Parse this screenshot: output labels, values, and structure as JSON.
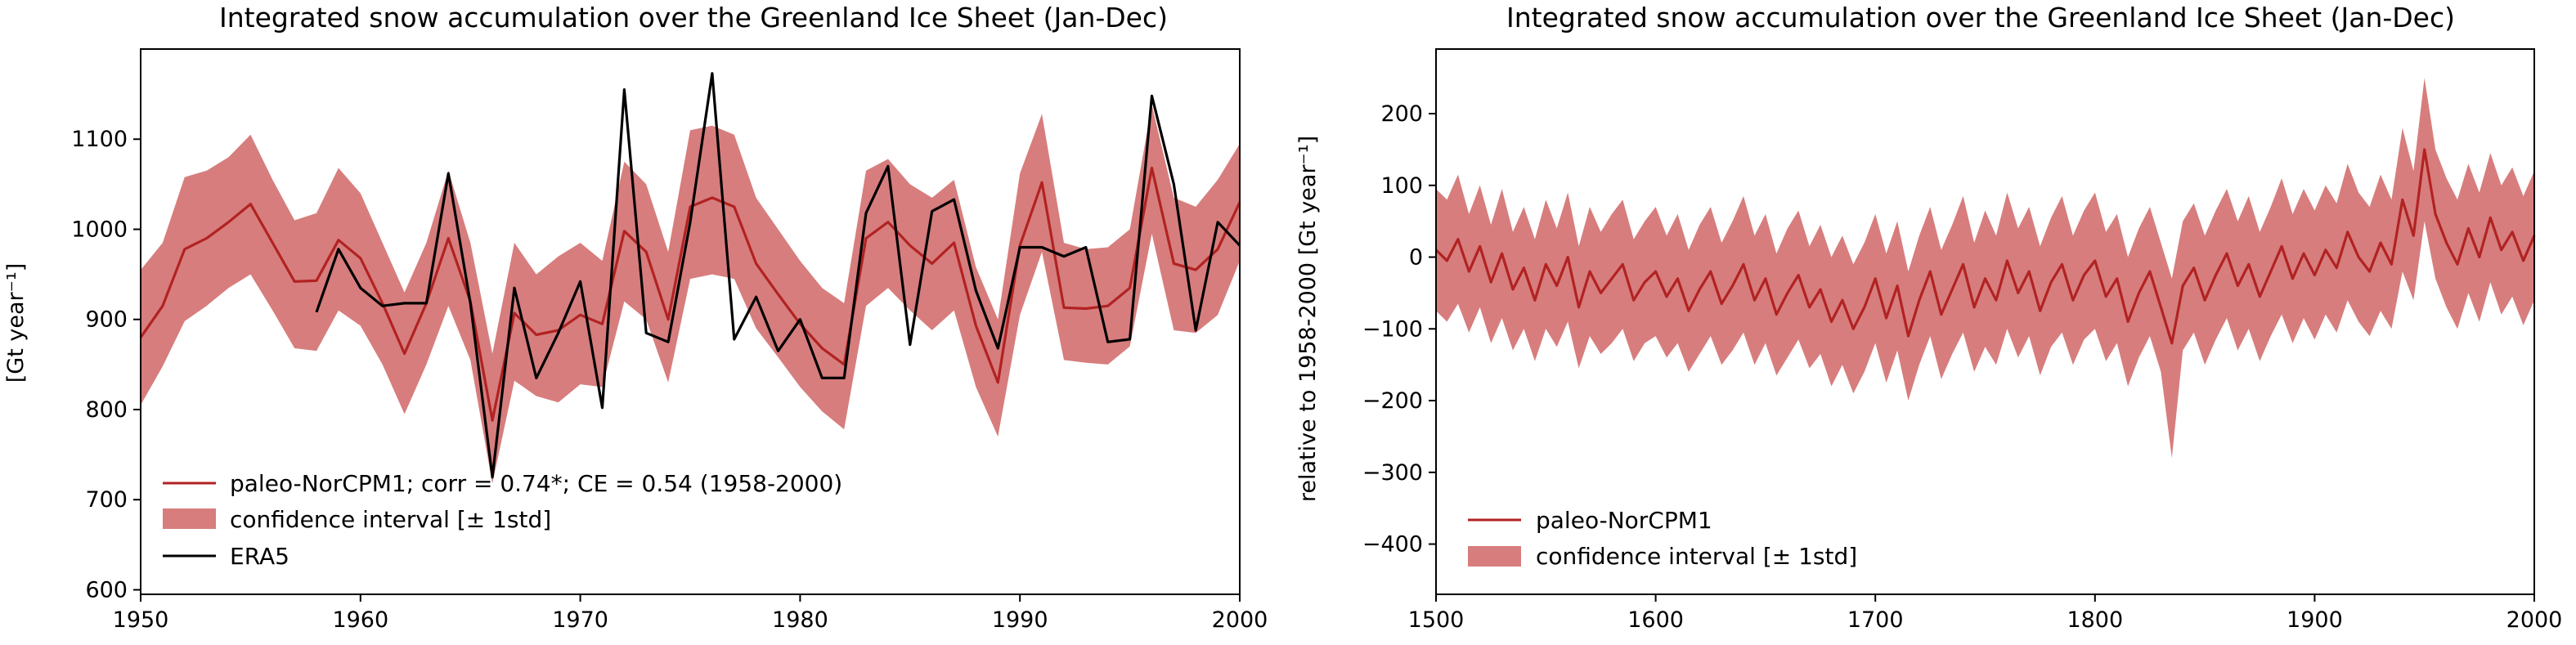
{
  "figure": {
    "colors": {
      "model_line": "#b22222",
      "band_fill": "#cd5c5c",
      "band_opacity": 0.8,
      "obs_line": "#000000"
    },
    "left": {
      "title": "Integrated snow accumulation over the Greenland Ice Sheet (Jan-Dec)",
      "ylabel": "[Gt year⁻¹]",
      "legend": {
        "placement": "lower-left",
        "model_label": "paleo-NorCPM1; corr = 0.74*; CE = 0.54 (1958-2000)",
        "band_label": "confidence interval [± 1std]",
        "obs_label": "ERA5"
      }
    },
    "right": {
      "title": "Integrated snow accumulation over the Greenland Ice Sheet (Jan-Dec)",
      "ylabel": "relative to 1958-2000 [Gt year⁻¹]",
      "legend": {
        "placement": "lower-left",
        "model_label": "paleo-NorCPM1",
        "band_label": "confidence interval [± 1std]"
      }
    }
  },
  "chart_data": [
    {
      "type": "line",
      "title": "Integrated snow accumulation over the Greenland Ice Sheet (Jan-Dec)",
      "xlabel": "",
      "ylabel": "[Gt year⁻¹]",
      "xlim": [
        1950,
        2000
      ],
      "ylim": [
        595,
        1200
      ],
      "xticks": [
        1950,
        1960,
        1970,
        1980,
        1990,
        2000
      ],
      "yticks": [
        600,
        700,
        800,
        900,
        1000,
        1100
      ],
      "grid": false,
      "series": [
        {
          "name": "paleo-NorCPM1; corr = 0.74*; CE = 0.54 (1958-2000)",
          "x": [
            1950,
            1951,
            1952,
            1953,
            1954,
            1955,
            1956,
            1957,
            1958,
            1959,
            1960,
            1961,
            1962,
            1963,
            1964,
            1965,
            1966,
            1967,
            1968,
            1969,
            1970,
            1971,
            1972,
            1973,
            1974,
            1975,
            1976,
            1977,
            1978,
            1979,
            1980,
            1981,
            1982,
            1983,
            1984,
            1985,
            1986,
            1987,
            1988,
            1989,
            1990,
            1991,
            1992,
            1993,
            1994,
            1995,
            1996,
            1997,
            1998,
            1999,
            2000
          ],
          "y": [
            880,
            915,
            978,
            990,
            1008,
            1028,
            985,
            942,
            943,
            988,
            968,
            918,
            862,
            918,
            990,
            920,
            788,
            907,
            883,
            888,
            905,
            895,
            998,
            975,
            900,
            1025,
            1035,
            1025,
            962,
            928,
            895,
            868,
            850,
            990,
            1008,
            982,
            962,
            985,
            893,
            830,
            982,
            1052,
            913,
            912,
            915,
            935,
            1068,
            962,
            955,
            978,
            1030
          ]
        },
        {
          "name": "confidence interval [± 1std]",
          "x": [
            1950,
            1951,
            1952,
            1953,
            1954,
            1955,
            1956,
            1957,
            1958,
            1959,
            1960,
            1961,
            1962,
            1963,
            1964,
            1965,
            1966,
            1967,
            1968,
            1969,
            1970,
            1971,
            1972,
            1973,
            1974,
            1975,
            1976,
            1977,
            1978,
            1979,
            1980,
            1981,
            1982,
            1983,
            1984,
            1985,
            1986,
            1987,
            1988,
            1989,
            1990,
            1991,
            1992,
            1993,
            1994,
            1995,
            1996,
            1997,
            1998,
            1999,
            2000
          ],
          "upper": [
            955,
            985,
            1058,
            1065,
            1080,
            1105,
            1055,
            1010,
            1018,
            1068,
            1040,
            985,
            930,
            985,
            1065,
            985,
            862,
            985,
            950,
            970,
            985,
            965,
            1075,
            1050,
            975,
            1110,
            1115,
            1105,
            1035,
            1000,
            965,
            935,
            918,
            1065,
            1078,
            1050,
            1035,
            1055,
            958,
            900,
            1062,
            1128,
            985,
            978,
            980,
            1000,
            1138,
            1035,
            1025,
            1055,
            1095
          ],
          "lower": [
            805,
            848,
            898,
            915,
            935,
            950,
            910,
            868,
            865,
            910,
            893,
            850,
            795,
            850,
            915,
            855,
            718,
            832,
            815,
            808,
            828,
            825,
            920,
            900,
            830,
            945,
            950,
            945,
            890,
            858,
            825,
            798,
            778,
            915,
            935,
            910,
            888,
            910,
            825,
            770,
            905,
            975,
            855,
            852,
            850,
            870,
            995,
            888,
            885,
            905,
            965
          ]
        },
        {
          "name": "ERA5",
          "x": [
            1958,
            1959,
            1960,
            1961,
            1962,
            1963,
            1964,
            1965,
            1966,
            1967,
            1968,
            1969,
            1970,
            1971,
            1972,
            1973,
            1974,
            1975,
            1976,
            1977,
            1978,
            1979,
            1980,
            1981,
            1982,
            1983,
            1984,
            1985,
            1986,
            1987,
            1988,
            1989,
            1990,
            1991,
            1992,
            1993,
            1994,
            1995,
            1996,
            1997,
            1998,
            1999,
            2000
          ],
          "y": [
            908,
            978,
            935,
            915,
            918,
            918,
            1062,
            918,
            725,
            935,
            835,
            885,
            942,
            802,
            1155,
            885,
            875,
            1008,
            1173,
            878,
            925,
            865,
            900,
            835,
            835,
            1018,
            1070,
            872,
            1020,
            1033,
            932,
            868,
            980,
            980,
            970,
            980,
            875,
            878,
            1148,
            1050,
            888,
            1008,
            982
          ]
        }
      ]
    },
    {
      "type": "line",
      "title": "Integrated snow accumulation over the Greenland Ice Sheet (Jan-Dec)",
      "xlabel": "",
      "ylabel": "relative to 1958-2000 [Gt year⁻¹]",
      "xlim": [
        1500,
        2000
      ],
      "ylim": [
        -470,
        290
      ],
      "xticks": [
        1500,
        1600,
        1700,
        1800,
        1900,
        2000
      ],
      "yticks": [
        -400,
        -300,
        -200,
        -100,
        0,
        100,
        200
      ],
      "grid": false,
      "series": [
        {
          "name": "paleo-NorCPM1",
          "x": [
            1500,
            1505,
            1510,
            1515,
            1520,
            1525,
            1530,
            1535,
            1540,
            1545,
            1550,
            1555,
            1560,
            1565,
            1570,
            1575,
            1580,
            1585,
            1590,
            1595,
            1600,
            1605,
            1610,
            1615,
            1620,
            1625,
            1630,
            1635,
            1640,
            1645,
            1650,
            1655,
            1660,
            1665,
            1670,
            1675,
            1680,
            1685,
            1690,
            1695,
            1700,
            1705,
            1710,
            1715,
            1720,
            1725,
            1730,
            1735,
            1740,
            1745,
            1750,
            1755,
            1760,
            1765,
            1770,
            1775,
            1780,
            1785,
            1790,
            1795,
            1800,
            1805,
            1810,
            1815,
            1820,
            1825,
            1830,
            1835,
            1840,
            1845,
            1850,
            1855,
            1860,
            1865,
            1870,
            1875,
            1880,
            1885,
            1890,
            1895,
            1900,
            1905,
            1910,
            1915,
            1920,
            1925,
            1930,
            1935,
            1940,
            1945,
            1950,
            1955,
            1960,
            1965,
            1970,
            1975,
            1980,
            1985,
            1990,
            1995,
            2000
          ],
          "y": [
            10,
            -5,
            25,
            -20,
            15,
            -35,
            5,
            -45,
            -15,
            -60,
            -10,
            -40,
            0,
            -70,
            -20,
            -50,
            -30,
            -10,
            -60,
            -35,
            -20,
            -55,
            -30,
            -75,
            -45,
            -20,
            -65,
            -40,
            -10,
            -60,
            -30,
            -80,
            -50,
            -25,
            -70,
            -45,
            -90,
            -60,
            -100,
            -70,
            -30,
            -85,
            -40,
            -110,
            -60,
            -20,
            -80,
            -45,
            -10,
            -70,
            -30,
            -60,
            -5,
            -50,
            -20,
            -75,
            -35,
            -10,
            -60,
            -25,
            -5,
            -55,
            -30,
            -90,
            -50,
            -20,
            -70,
            -120,
            -40,
            -15,
            -60,
            -25,
            5,
            -40,
            -10,
            -55,
            -20,
            15,
            -30,
            5,
            -25,
            10,
            -15,
            35,
            0,
            -20,
            20,
            -10,
            80,
            30,
            150,
            60,
            20,
            -10,
            40,
            0,
            55,
            10,
            35,
            -5,
            30
          ]
        },
        {
          "name": "confidence interval [± 1std]",
          "x": [
            1500,
            1505,
            1510,
            1515,
            1520,
            1525,
            1530,
            1535,
            1540,
            1545,
            1550,
            1555,
            1560,
            1565,
            1570,
            1575,
            1580,
            1585,
            1590,
            1595,
            1600,
            1605,
            1610,
            1615,
            1620,
            1625,
            1630,
            1635,
            1640,
            1645,
            1650,
            1655,
            1660,
            1665,
            1670,
            1675,
            1680,
            1685,
            1690,
            1695,
            1700,
            1705,
            1710,
            1715,
            1720,
            1725,
            1730,
            1735,
            1740,
            1745,
            1750,
            1755,
            1760,
            1765,
            1770,
            1775,
            1780,
            1785,
            1790,
            1795,
            1800,
            1805,
            1810,
            1815,
            1820,
            1825,
            1830,
            1835,
            1840,
            1845,
            1850,
            1855,
            1860,
            1865,
            1870,
            1875,
            1880,
            1885,
            1890,
            1895,
            1900,
            1905,
            1910,
            1915,
            1920,
            1925,
            1930,
            1935,
            1940,
            1945,
            1950,
            1955,
            1960,
            1965,
            1970,
            1975,
            1980,
            1985,
            1990,
            1995,
            2000
          ],
          "upper": [
            95,
            80,
            115,
            60,
            100,
            45,
            95,
            35,
            70,
            25,
            80,
            40,
            90,
            15,
            70,
            35,
            60,
            80,
            25,
            50,
            70,
            30,
            60,
            10,
            45,
            70,
            20,
            50,
            85,
            30,
            60,
            5,
            40,
            65,
            15,
            45,
            0,
            30,
            -10,
            20,
            60,
            5,
            50,
            -20,
            30,
            70,
            10,
            45,
            85,
            20,
            65,
            30,
            90,
            40,
            70,
            15,
            55,
            85,
            30,
            65,
            90,
            35,
            60,
            0,
            40,
            70,
            20,
            -30,
            50,
            75,
            30,
            65,
            95,
            50,
            85,
            35,
            70,
            110,
            60,
            95,
            65,
            100,
            75,
            130,
            90,
            70,
            115,
            80,
            180,
            120,
            250,
            150,
            110,
            80,
            130,
            90,
            145,
            100,
            125,
            85,
            120
          ],
          "lower": [
            -75,
            -90,
            -65,
            -105,
            -70,
            -120,
            -85,
            -130,
            -100,
            -145,
            -100,
            -125,
            -90,
            -155,
            -110,
            -135,
            -120,
            -100,
            -145,
            -120,
            -110,
            -140,
            -120,
            -160,
            -135,
            -110,
            -150,
            -130,
            -105,
            -150,
            -120,
            -165,
            -140,
            -115,
            -155,
            -135,
            -180,
            -150,
            -190,
            -160,
            -120,
            -175,
            -130,
            -200,
            -150,
            -110,
            -170,
            -135,
            -105,
            -160,
            -125,
            -150,
            -100,
            -140,
            -110,
            -165,
            -125,
            -105,
            -150,
            -115,
            -100,
            -145,
            -120,
            -180,
            -140,
            -110,
            -160,
            -280,
            -130,
            -105,
            -150,
            -115,
            -85,
            -130,
            -100,
            -145,
            -110,
            -80,
            -120,
            -85,
            -115,
            -80,
            -105,
            -60,
            -90,
            -110,
            -75,
            -100,
            -20,
            -60,
            50,
            -30,
            -70,
            -100,
            -50,
            -90,
            -35,
            -80,
            -55,
            -95,
            -60
          ]
        }
      ]
    }
  ]
}
